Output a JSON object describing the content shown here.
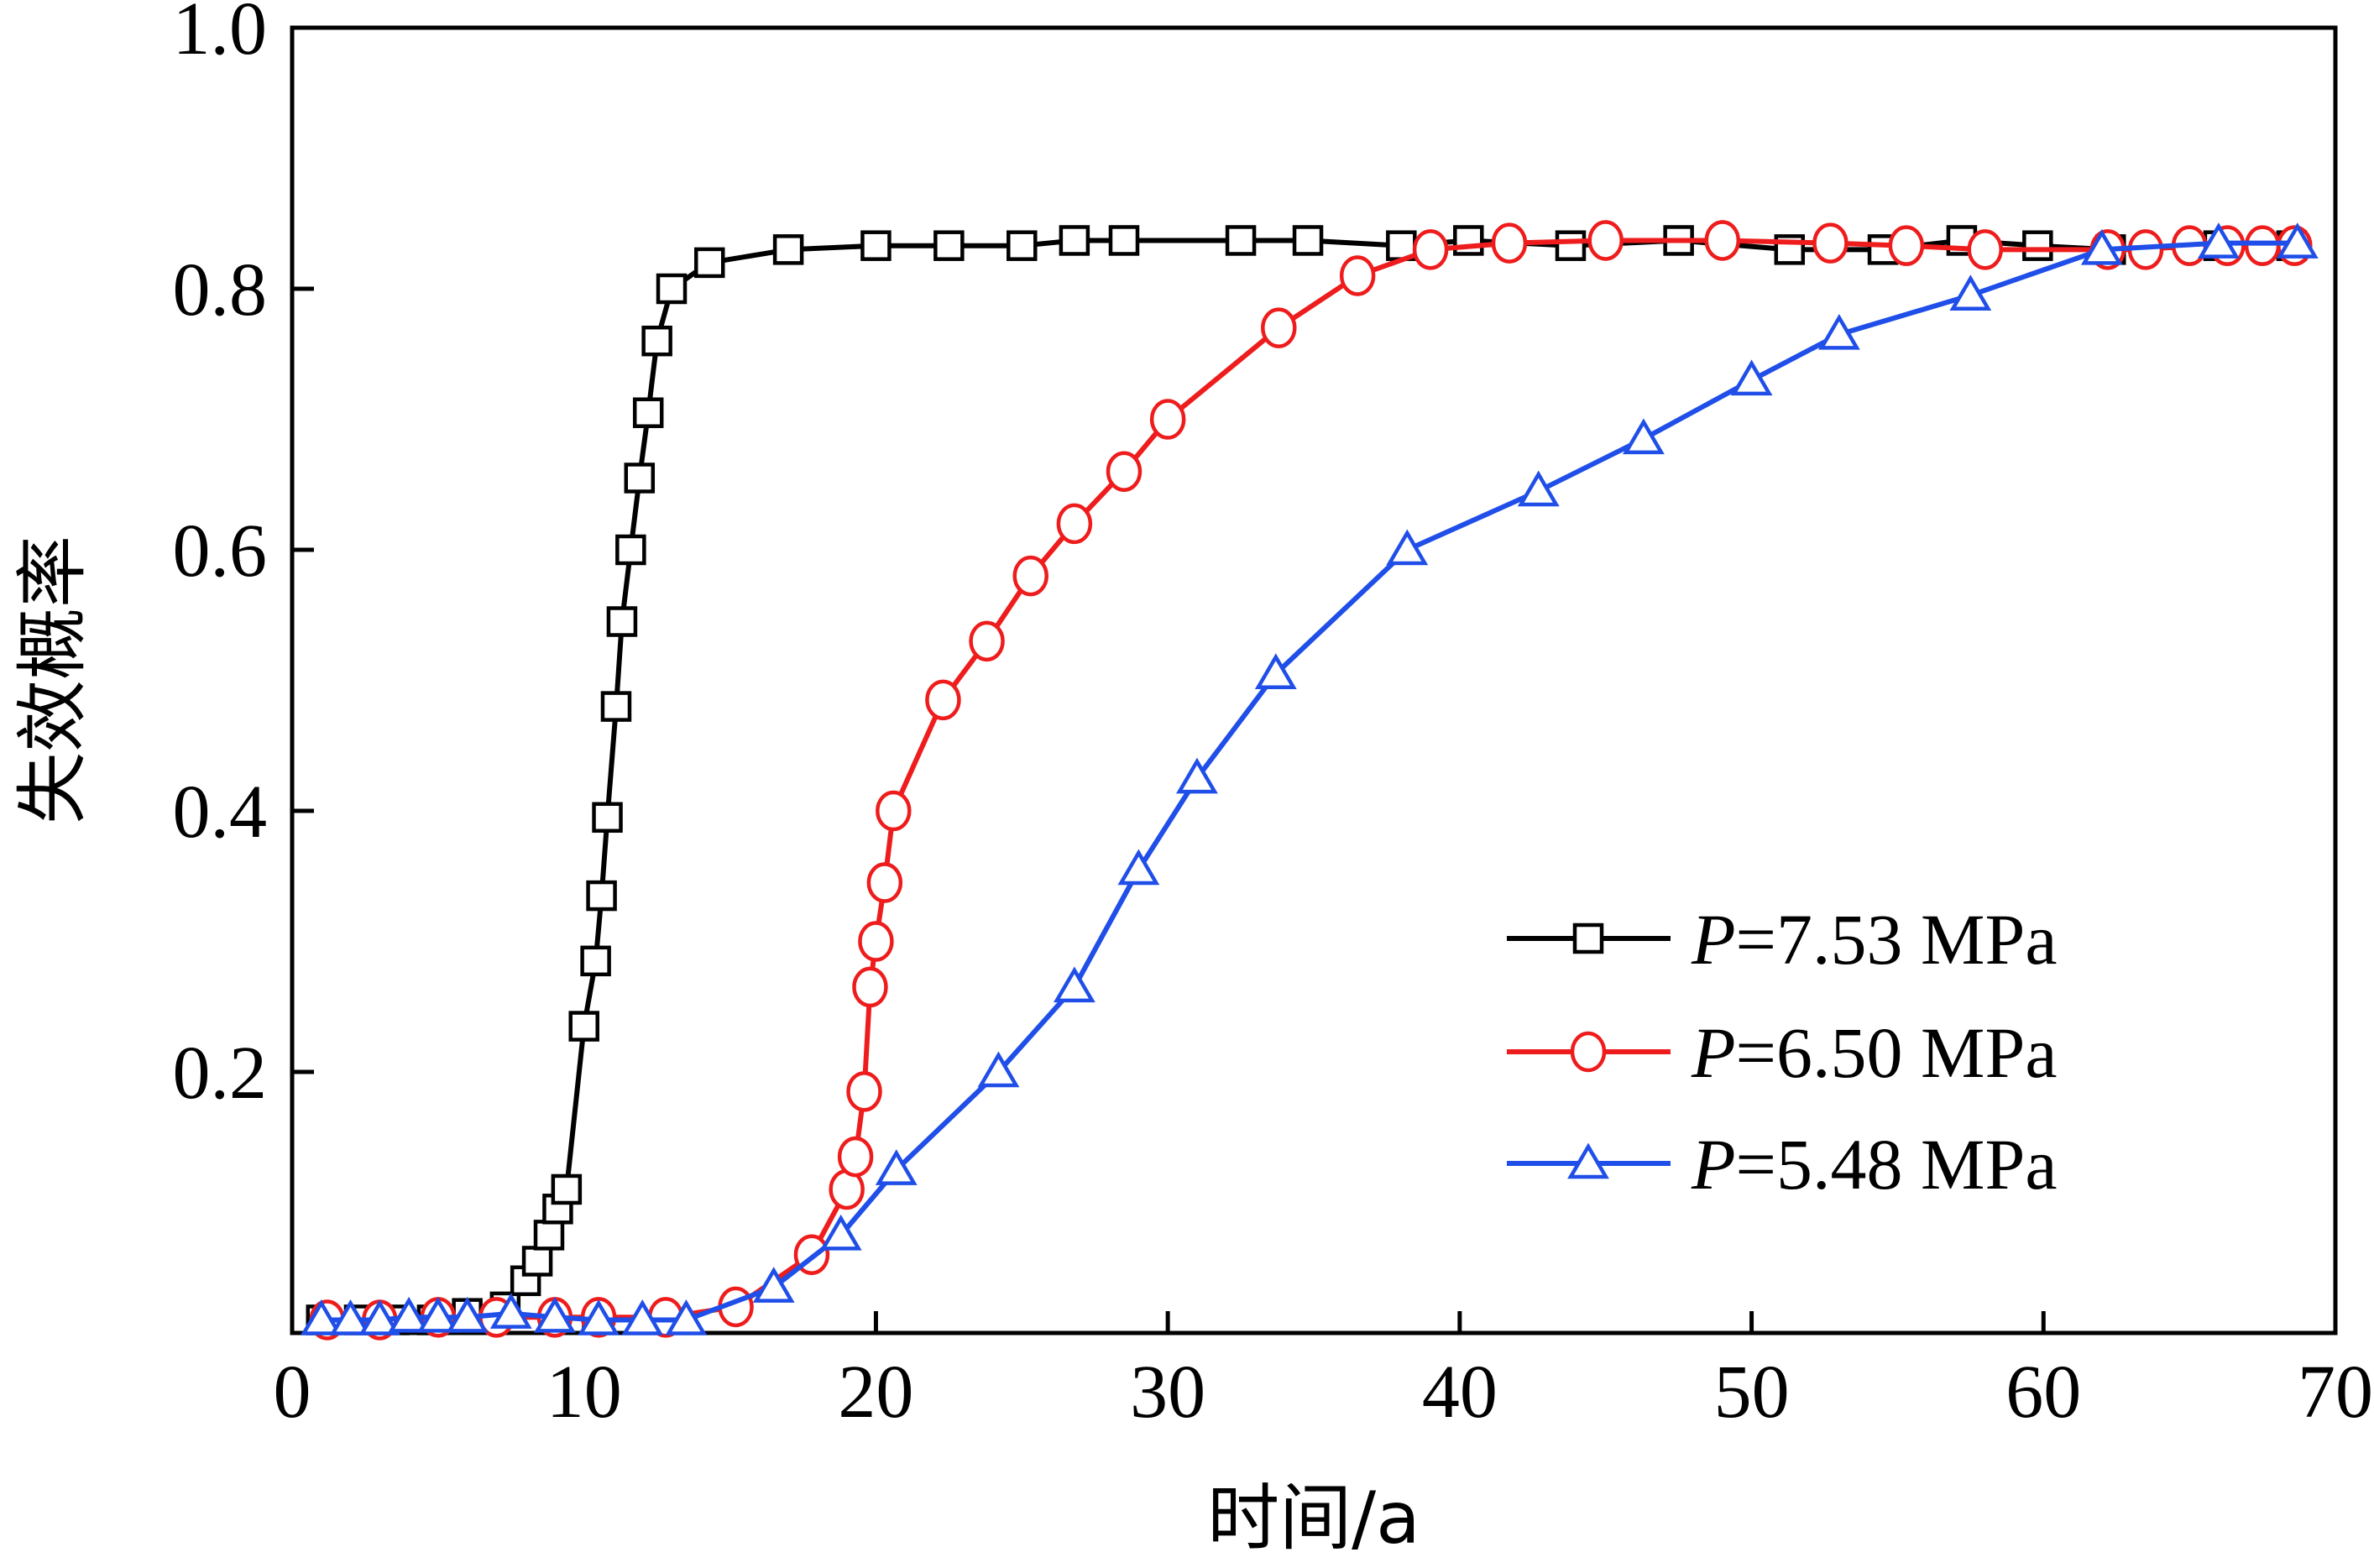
{
  "chart_data": {
    "type": "line",
    "title": "",
    "xlabel": "时间/a",
    "ylabel": "失效概率",
    "xlim": [
      0,
      70
    ],
    "ylim": [
      0,
      1.0
    ],
    "xticks": [
      "0",
      "10",
      "20",
      "30",
      "40",
      "50",
      "60",
      "70"
    ],
    "yticks": [
      "0.2",
      "0.4",
      "0.6",
      "0.8",
      "1.0"
    ],
    "grid": false,
    "legend_position": "bottom-right",
    "series": [
      {
        "name": "P=7.53 MPa",
        "legend_prefix": "P",
        "legend_suffix": "=7.53 MPa",
        "color": "#000000",
        "marker": "square",
        "x": [
          1.0,
          2.3,
          3.5,
          4.8,
          6.0,
          7.3,
          8.0,
          8.4,
          8.8,
          9.1,
          9.4,
          10.0,
          10.4,
          10.6,
          10.8,
          11.1,
          11.3,
          11.6,
          11.9,
          12.2,
          12.5,
          13.0,
          14.3,
          17.0,
          20.0,
          22.5,
          25.0,
          26.8,
          28.5,
          32.5,
          34.8,
          38.0,
          40.3,
          43.8,
          47.5,
          51.3,
          54.5,
          57.2,
          59.8,
          62.3,
          66.0,
          68.5
        ],
        "y": [
          0.01,
          0.01,
          0.01,
          0.01,
          0.015,
          0.02,
          0.04,
          0.055,
          0.075,
          0.095,
          0.11,
          0.235,
          0.285,
          0.335,
          0.395,
          0.48,
          0.545,
          0.6,
          0.655,
          0.705,
          0.76,
          0.8,
          0.82,
          0.83,
          0.833,
          0.833,
          0.833,
          0.837,
          0.837,
          0.837,
          0.837,
          0.833,
          0.837,
          0.833,
          0.837,
          0.83,
          0.83,
          0.837,
          0.833,
          0.83,
          0.833,
          0.833
        ]
      },
      {
        "name": "P=6.50 MPa",
        "legend_prefix": "P",
        "legend_suffix": "=6.50 MPa",
        "color": "#ee1c1c",
        "marker": "circle",
        "x": [
          1.2,
          3.0,
          5.0,
          7.0,
          9.0,
          10.5,
          12.8,
          15.2,
          17.8,
          19.0,
          19.3,
          19.6,
          19.8,
          20.0,
          20.3,
          20.6,
          22.3,
          23.8,
          25.3,
          26.8,
          28.5,
          30.0,
          33.8,
          36.5,
          39.0,
          41.7,
          45.0,
          49.0,
          52.7,
          55.3,
          58.0,
          62.2,
          63.5,
          65.0,
          66.3,
          67.5,
          68.6
        ],
        "y": [
          0.01,
          0.01,
          0.012,
          0.012,
          0.012,
          0.012,
          0.012,
          0.02,
          0.06,
          0.11,
          0.135,
          0.185,
          0.265,
          0.3,
          0.345,
          0.4,
          0.485,
          0.53,
          0.58,
          0.62,
          0.66,
          0.7,
          0.77,
          0.81,
          0.83,
          0.835,
          0.837,
          0.837,
          0.835,
          0.833,
          0.83,
          0.83,
          0.83,
          0.833,
          0.833,
          0.833,
          0.833
        ]
      },
      {
        "name": "P=5.48 MPa",
        "legend_prefix": "P",
        "legend_suffix": "=5.48 MPa",
        "color": "#1f4ee8",
        "marker": "triangle",
        "x": [
          1.0,
          2.0,
          3.0,
          4.0,
          5.0,
          6.0,
          7.5,
          9.0,
          10.5,
          12.0,
          13.5,
          16.5,
          18.8,
          20.7,
          24.2,
          26.8,
          29.0,
          31.0,
          33.7,
          38.2,
          42.7,
          46.3,
          50.0,
          53.0,
          57.5,
          62.0,
          66.0,
          68.7
        ],
        "y": [
          0.01,
          0.01,
          0.01,
          0.012,
          0.012,
          0.012,
          0.015,
          0.012,
          0.01,
          0.01,
          0.01,
          0.035,
          0.075,
          0.125,
          0.2,
          0.265,
          0.355,
          0.425,
          0.505,
          0.6,
          0.645,
          0.685,
          0.73,
          0.765,
          0.795,
          0.83,
          0.835,
          0.835
        ]
      }
    ]
  }
}
